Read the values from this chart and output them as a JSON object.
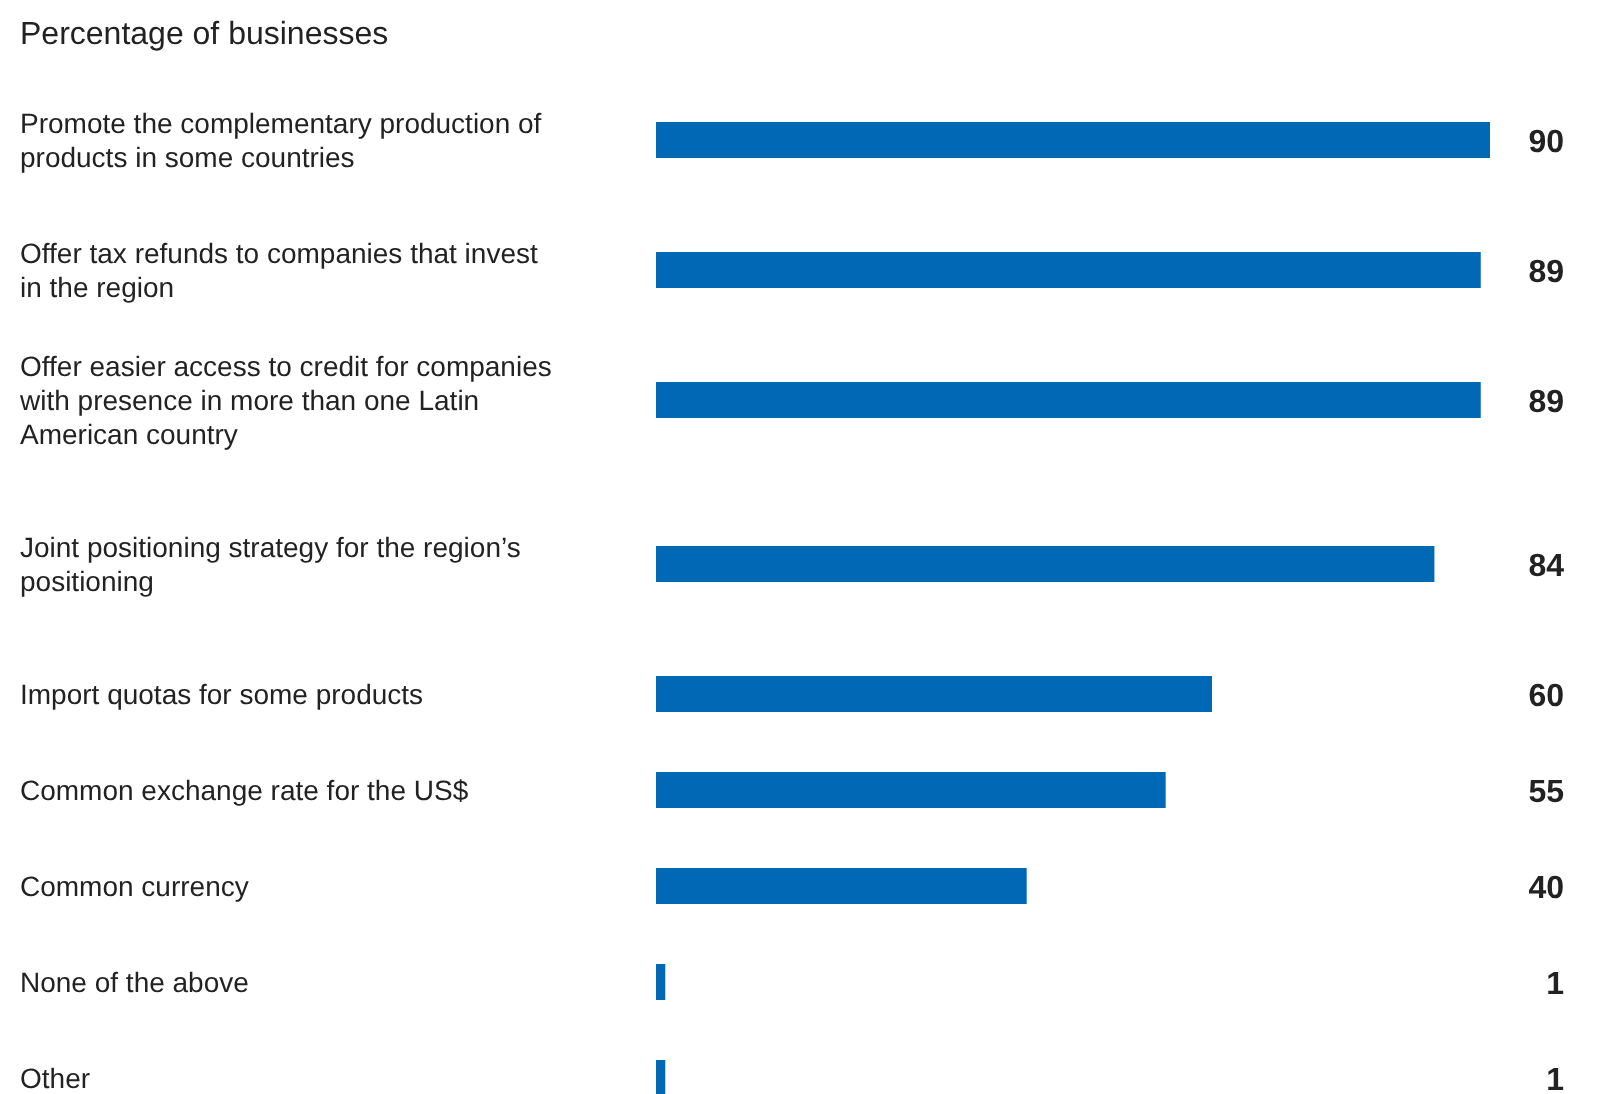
{
  "chart_data": {
    "type": "bar",
    "orientation": "horizontal",
    "subtitle": "Percentage of businesses",
    "categories": [
      "Promote the complementary production of products in some countries",
      "Offer tax refunds to companies that invest in the region",
      "Offer easier access to credit for companies with presence in more than one Latin American country",
      "Joint positioning strategy for the region’s positioning",
      "Import quotas for some products",
      "Common exchange rate for the US$",
      "Common currency",
      "None of the above",
      "Other"
    ],
    "values": [
      90,
      89,
      89,
      84,
      60,
      55,
      40,
      1,
      1
    ],
    "color": "#0068b5",
    "data_labels": true
  }
}
